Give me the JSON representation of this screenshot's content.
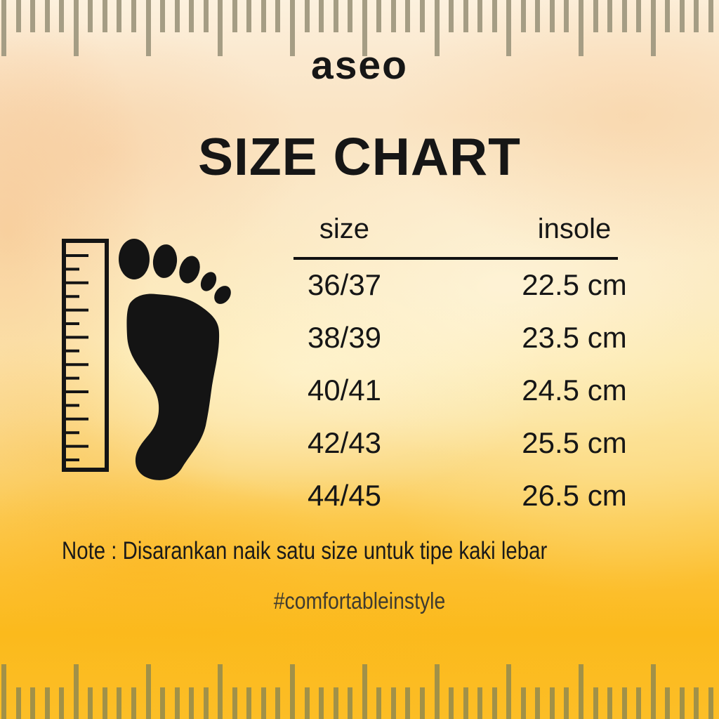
{
  "brand": "aseo",
  "title": "SIZE CHART",
  "size_table": {
    "header": {
      "size": "size",
      "insole": "insole"
    },
    "rows": [
      {
        "size": "36/37",
        "insole": "22.5 cm"
      },
      {
        "size": "38/39",
        "insole": "23.5 cm"
      },
      {
        "size": "40/41",
        "insole": "24.5 cm"
      },
      {
        "size": "42/43",
        "insole": "25.5 cm"
      },
      {
        "size": "44/45",
        "insole": "26.5 cm"
      }
    ]
  },
  "note": "Note : Disarankan naik satu size untuk tipe kaki lebar",
  "hashtag": "#comfortableinstyle",
  "icons": {
    "top_strip": "ruler-ticks-top",
    "bottom_strip": "ruler-ticks-bottom",
    "measure": "vertical-ruler-icon",
    "foot": "footprint-icon"
  },
  "colors": {
    "text": "#161616",
    "bg_top": "#fcf1de",
    "bg_mid": "#fdeab2",
    "bg_bottom": "#fbba1c",
    "ruler_top_tick": "#a59d84",
    "ruler_bottom_tick": "#a19148",
    "icon_black": "#141414"
  }
}
